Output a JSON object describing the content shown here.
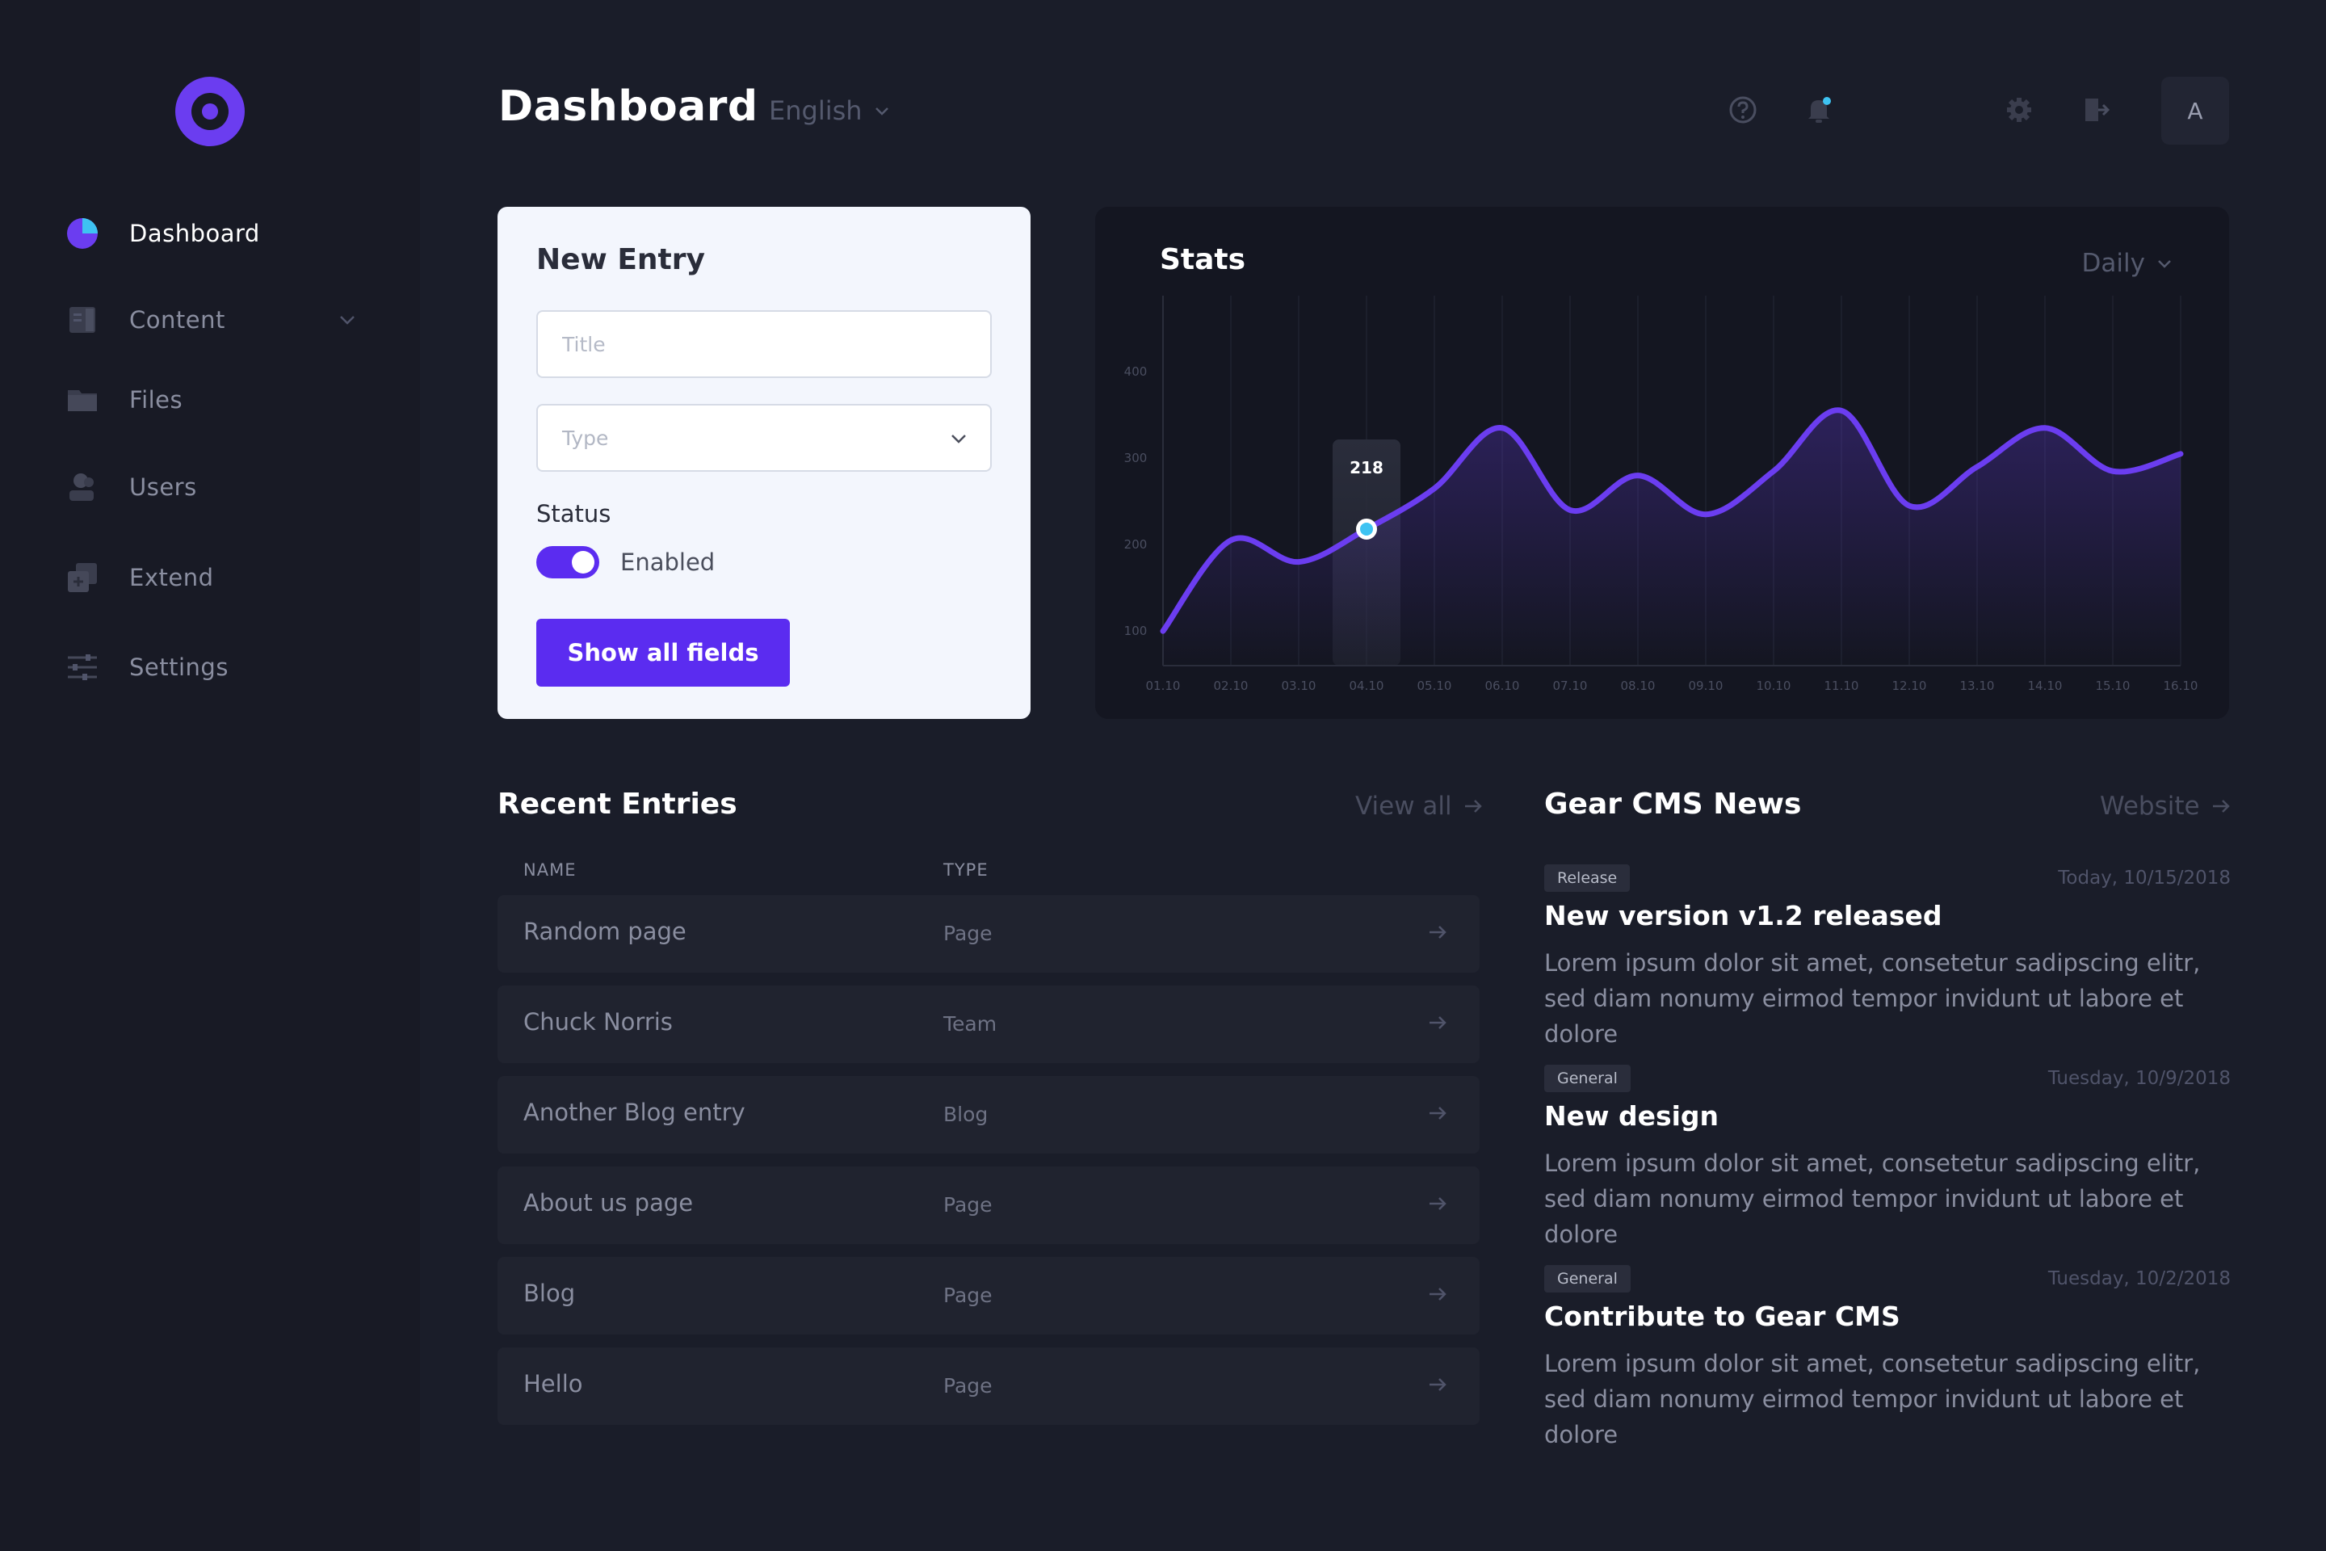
{
  "sidebar": {
    "items": [
      {
        "label": "Dashboard",
        "icon": "pie-chart-icon",
        "active": true
      },
      {
        "label": "Content",
        "icon": "document-icon",
        "has_submenu": true
      },
      {
        "label": "Files",
        "icon": "folder-icon"
      },
      {
        "label": "Users",
        "icon": "user-icon"
      },
      {
        "label": "Extend",
        "icon": "plugin-icon"
      },
      {
        "label": "Settings",
        "icon": "sliders-icon"
      }
    ]
  },
  "header": {
    "title": "Dashboard",
    "language": "English",
    "avatar_initial": "A"
  },
  "new_entry": {
    "title": "New Entry",
    "title_placeholder": "Title",
    "type_placeholder": "Type",
    "status_label": "Status",
    "status_value": "Enabled",
    "button_label": "Show all fields"
  },
  "stats": {
    "title": "Stats",
    "range": "Daily"
  },
  "chart_data": {
    "type": "line",
    "x": [
      "01.10",
      "02.10",
      "03.10",
      "04.10",
      "05.10",
      "06.10",
      "07.10",
      "08.10",
      "09.10",
      "10.10",
      "11.10",
      "12.10",
      "13.10",
      "14.10",
      "15.10",
      "16.10"
    ],
    "series": [
      {
        "values": [
          100,
          205,
          180,
          218,
          265,
          335,
          240,
          280,
          235,
          285,
          355,
          245,
          290,
          335,
          285,
          305
        ]
      }
    ],
    "y_ticks": [
      "100",
      "200",
      "300",
      "400"
    ],
    "ylim": [
      60,
      460
    ],
    "highlight": {
      "x": "04.10",
      "label": "218"
    },
    "line_color": "#6b3df0",
    "highlight_color": "#3ec3f2"
  },
  "recent_entries": {
    "title": "Recent Entries",
    "view_all": "View all",
    "columns": [
      "NAME",
      "TYPE"
    ],
    "rows": [
      {
        "name": "Random page",
        "type": "Page"
      },
      {
        "name": "Chuck Norris",
        "type": "Team"
      },
      {
        "name": "Another Blog entry",
        "type": "Blog"
      },
      {
        "name": "About us page",
        "type": "Page"
      },
      {
        "name": "Blog",
        "type": "Page"
      },
      {
        "name": "Hello",
        "type": "Page"
      }
    ]
  },
  "news": {
    "title": "Gear CMS News",
    "website_link": "Website",
    "items": [
      {
        "badge": "Release",
        "date": "Today, 10/15/2018",
        "headline": "New version v1.2 released",
        "body": "Lorem ipsum dolor sit amet, consetetur sadipscing elitr, sed diam nonumy eirmod tempor invidunt ut labore et dolore"
      },
      {
        "badge": "General",
        "date": "Tuesday, 10/9/2018",
        "headline": "New design",
        "body": "Lorem ipsum dolor sit amet, consetetur sadipscing elitr, sed diam nonumy eirmod tempor invidunt ut labore et dolore"
      },
      {
        "badge": "General",
        "date": "Tuesday, 10/2/2018",
        "headline": "Contribute to Gear CMS",
        "body": "Lorem ipsum dolor sit amet, consetetur sadipscing elitr, sed diam nonumy eirmod tempor invidunt ut labore et dolore"
      }
    ]
  },
  "colors": {
    "accent": "#5b2cf0",
    "background": "#1a1d29",
    "sidebar": "#181a25",
    "card_light": "#f3f6fd"
  }
}
